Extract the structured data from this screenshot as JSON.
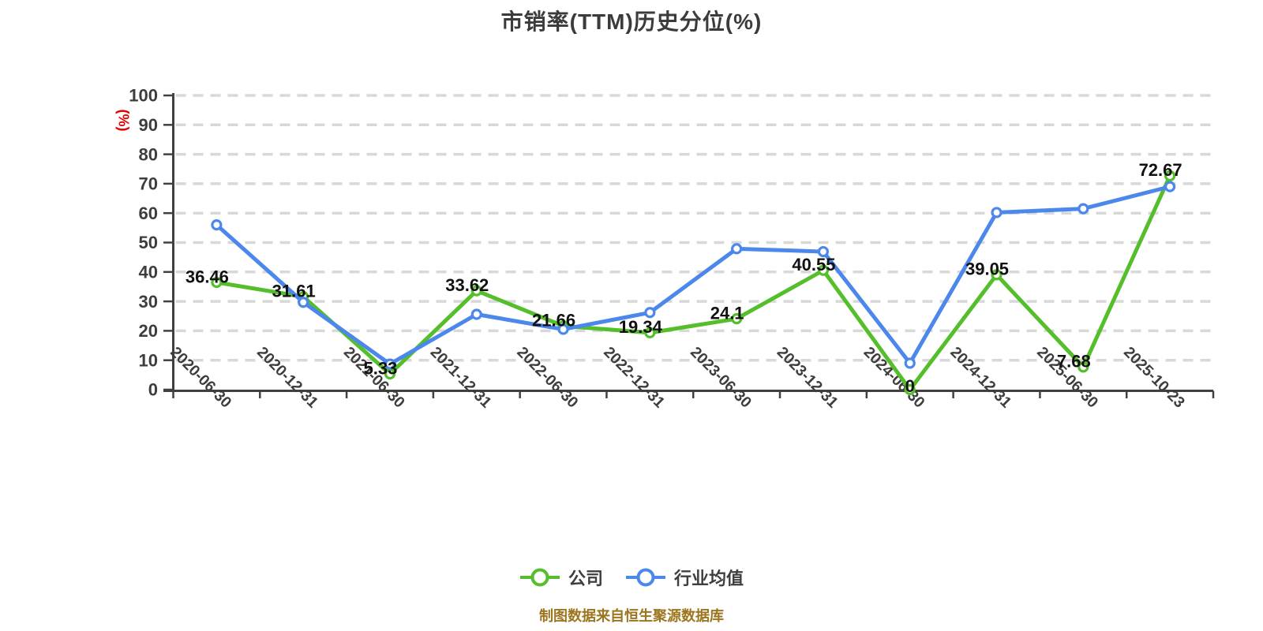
{
  "title": "市销率(TTM)历史分位(%)",
  "y_axis_unit_label": "(%)",
  "source_note": "制图数据来自恒生聚源数据库",
  "colors": {
    "company_series": "#55be2b",
    "industry_series": "#4c87ec",
    "grid_line": "#d8d8d8",
    "axis_line": "#404040",
    "tick_text": "#3d3d3d",
    "title_text": "#3b3b3b",
    "data_label_text": "#111111",
    "unit_label_text": "#e60000",
    "source_text": "#9c761e",
    "marker_fill": "#ffffff"
  },
  "legend": {
    "items": [
      {
        "label": "公司"
      },
      {
        "label": "行业均值"
      }
    ]
  },
  "chart_data": {
    "type": "line",
    "title": "市销率(TTM)历史分位(%)",
    "xlabel": "",
    "ylabel": "(%)",
    "ylim": [
      0,
      100
    ],
    "ytick_step": 10,
    "grid": "horizontal-dashed",
    "legend_position": "bottom",
    "categories": [
      "2020-06-30",
      "2020-12-31",
      "2021-06-30",
      "2021-12-31",
      "2022-06-30",
      "2022-12-31",
      "2023-06-30",
      "2023-12-31",
      "2024-06-30",
      "2024-12-31",
      "2025-06-30",
      "2025-10-23"
    ],
    "series": [
      {
        "name": "公司",
        "color": "#55be2b",
        "values": [
          36.46,
          31.61,
          5.33,
          33.62,
          21.66,
          19.34,
          24.1,
          40.55,
          0,
          39.05,
          7.68,
          72.67
        ],
        "point_labels": [
          "36.46",
          "31.61",
          "5.33",
          "33.62",
          "21.66",
          "19.34",
          "24.1",
          "40.55",
          "0",
          "39.05",
          "7.68",
          "72.67"
        ]
      },
      {
        "name": "行业均值",
        "color": "#4c87ec",
        "values": [
          56,
          29.7,
          8.7,
          25.6,
          20.5,
          26.2,
          47.9,
          46.9,
          9,
          60.2,
          61.5,
          69
        ]
      }
    ]
  }
}
